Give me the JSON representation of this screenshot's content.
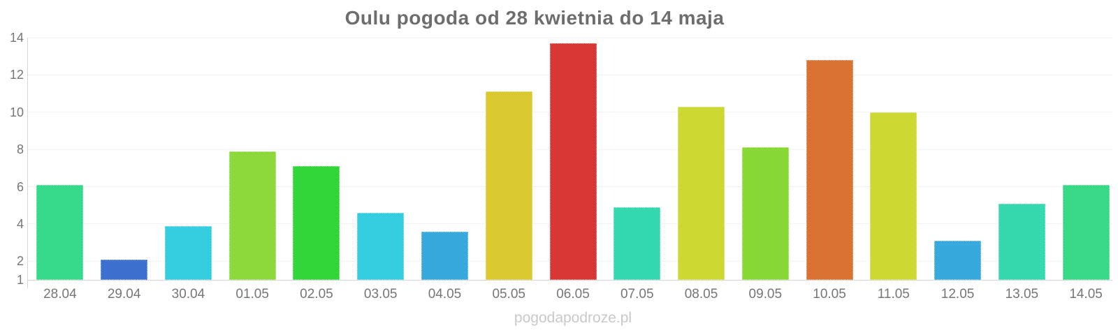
{
  "title": "Oulu pogoda od 28 kwietnia do 14 maja",
  "watermark": "pogodapodroze.pl",
  "chart_data": {
    "type": "bar",
    "title": "Oulu pogoda od 28 kwietnia do 14 maja",
    "xlabel": "",
    "ylabel": "",
    "categories": [
      "28.04",
      "29.04",
      "30.04",
      "01.05",
      "02.05",
      "03.05",
      "04.05",
      "05.05",
      "06.05",
      "07.05",
      "08.05",
      "09.05",
      "10.05",
      "11.05",
      "12.05",
      "13.05",
      "14.05"
    ],
    "values": [
      6.1,
      2.1,
      3.9,
      7.9,
      7.1,
      4.6,
      3.6,
      11.1,
      13.7,
      4.9,
      10.3,
      8.1,
      12.8,
      10.0,
      3.1,
      5.1,
      6.1
    ],
    "bar_colors": [
      "#37d98a",
      "#3e70d0",
      "#35cde0",
      "#8dd93c",
      "#33d639",
      "#35cde0",
      "#38a9dc",
      "#d9c92f",
      "#d93636",
      "#34d9b2",
      "#cbd932",
      "#89d936",
      "#d97232",
      "#cbd932",
      "#38a9dc",
      "#36d9ad",
      "#38d987"
    ],
    "ylim": [
      1,
      14
    ],
    "yticks": [
      1,
      2,
      4,
      6,
      8,
      10,
      12,
      14
    ],
    "grid": true,
    "legend": "none",
    "colors": {
      "title": "#6d6d6d",
      "axis_labels": "#767676",
      "axis_line": "#d6d6d6",
      "gridline": "#f3f3f3",
      "watermark": "#c9c9c9",
      "background": "#ffffff"
    }
  }
}
